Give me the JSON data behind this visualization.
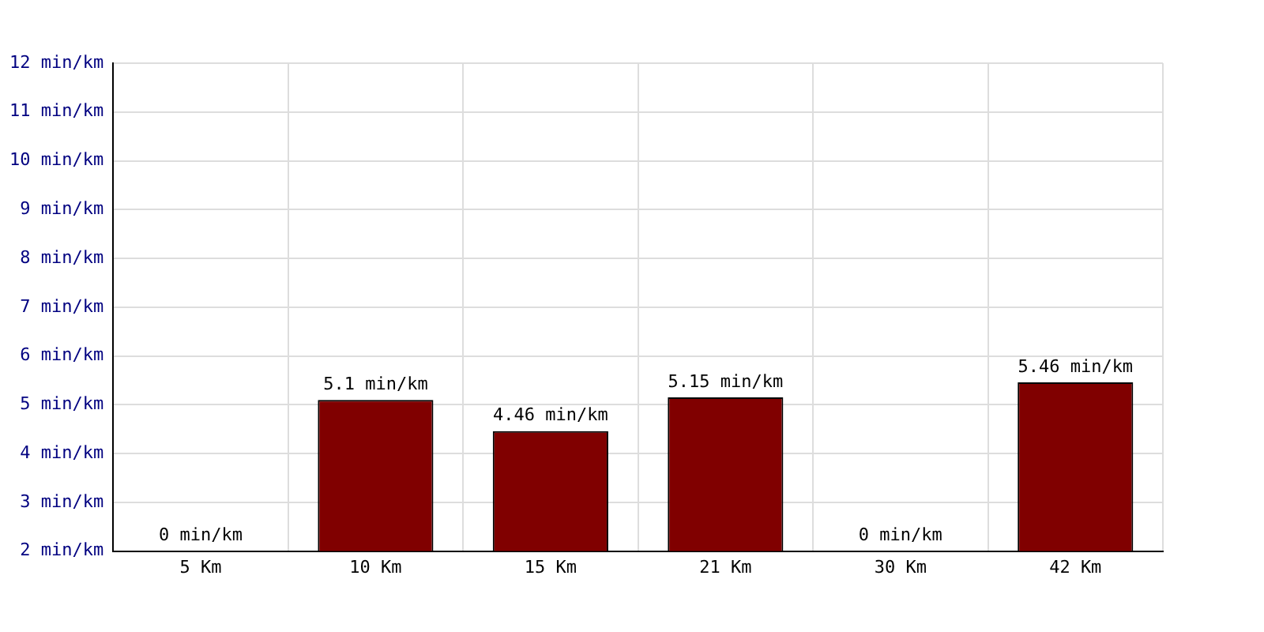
{
  "chart_data": {
    "type": "bar",
    "categories": [
      "5 Km",
      "10 Km",
      "15 Km",
      "21 Km",
      "30 Km",
      "42 Km"
    ],
    "values": [
      null,
      5.1,
      4.46,
      5.15,
      null,
      5.46
    ],
    "value_labels": [
      "0 min/km",
      "5.1 min/km",
      "4.46 min/km",
      "5.15 min/km",
      "0 min/km",
      "5.46 min/km"
    ],
    "color": "#800000",
    "ylim": [
      2,
      12
    ],
    "yticks": [
      {
        "value": 2,
        "label": "2 min/km"
      },
      {
        "value": 3,
        "label": "3 min/km"
      },
      {
        "value": 4,
        "label": "4 min/km"
      },
      {
        "value": 5,
        "label": "5 min/km"
      },
      {
        "value": 6,
        "label": "6 min/km"
      },
      {
        "value": 7,
        "label": "7 min/km"
      },
      {
        "value": 8,
        "label": "8 min/km"
      },
      {
        "value": 9,
        "label": "9 min/km"
      },
      {
        "value": 10,
        "label": "10 min/km"
      },
      {
        "value": 11,
        "label": "11 min/km"
      },
      {
        "value": 12,
        "label": "12 min/km"
      }
    ],
    "grid": true
  }
}
